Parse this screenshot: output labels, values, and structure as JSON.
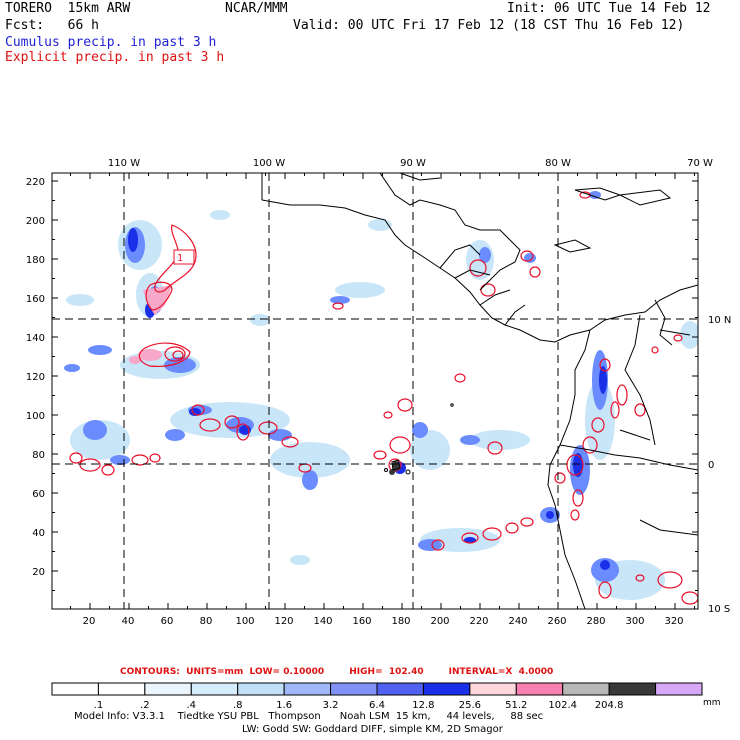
{
  "header": {
    "model": "TORERO  15km ARW",
    "org": "NCAR/MMM",
    "init": "Init: 06 UTC Tue 14 Feb 12",
    "fcst": "Fcst:   66 h",
    "valid": "Valid: 00 UTC Fri 17 Feb 12 (18 CST Thu 16 Feb 12)",
    "cumulus": "Cumulus precip. in past 3 h",
    "explicit": "Explicit precip. in past 3 h"
  },
  "map": {
    "lon_labels": [
      "110 W",
      "100 W",
      "90 W",
      "80 W",
      "70 W"
    ],
    "lat_labels": [
      "10 N",
      "0",
      "10 S"
    ],
    "y_ticks": [
      "220",
      "200",
      "180",
      "160",
      "140",
      "120",
      "100",
      "80",
      "60",
      "40",
      "20"
    ],
    "x_ticks": [
      "20",
      "40",
      "60",
      "80",
      "100",
      "120",
      "140",
      "160",
      "180",
      "200",
      "220",
      "240",
      "260",
      "280",
      "300",
      "320"
    ],
    "contour_label": "1",
    "colors": {
      "cumulus_light": "#c8e6f8",
      "cumulus_mid": "#6b8cff",
      "cumulus_dark": "#1a2fe8",
      "explicit": "#e8102a",
      "pink": "#f7a8c8",
      "coast": "#000000"
    }
  },
  "footer": {
    "contours": "CONTOURS:  UNITS=mm  LOW= 0.10000        HIGH=  102.40        INTERVAL=X  4.0000",
    "scale_labels": [
      ".1",
      ".2",
      ".4",
      ".8",
      "1.6",
      "3.2",
      "6.4",
      "12.8",
      "25.6",
      "51.2",
      "102.4",
      "204.8"
    ],
    "units": "mm",
    "scale_colors": [
      "#ffffff",
      "#ffffff",
      "#eaf5fd",
      "#d6ecfa",
      "#c0e0f7",
      "#a0b8f7",
      "#8092f5",
      "#5060f0",
      "#1a2fe8",
      "#ffd6dc",
      "#f880b0",
      "#b8b8b8",
      "#383838",
      "#d8a8f8"
    ],
    "info_line1": "Model Info: V3.3.1    Tiedtke YSU PBL   Thompson      Noah LSM  15 km,     44 levels,     88 sec",
    "info_line2": "LW: Godd SW: Goddard DIFF, simple KM, 2D Smagor"
  }
}
